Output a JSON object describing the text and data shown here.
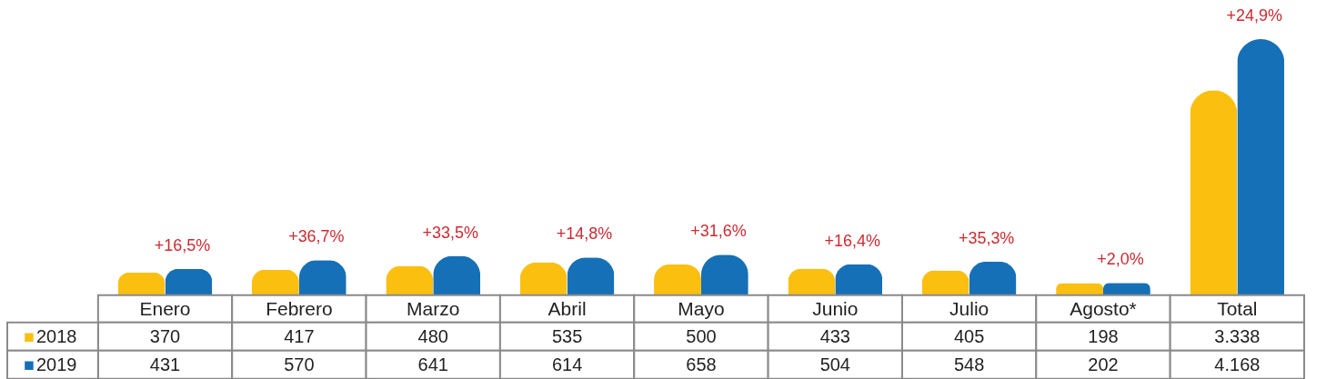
{
  "chart_data": {
    "type": "bar",
    "categories": [
      "Enero",
      "Febrero",
      "Marzo",
      "Abril",
      "Mayo",
      "Junio",
      "Julio",
      "Agosto*",
      "Total"
    ],
    "series": [
      {
        "name": "2018",
        "color": "#fbbf10",
        "values": [
          370,
          417,
          480,
          535,
          500,
          433,
          405,
          198,
          3338
        ],
        "value_labels": [
          "370",
          "417",
          "480",
          "535",
          "500",
          "433",
          "405",
          "198",
          "3.338"
        ]
      },
      {
        "name": "2019",
        "color": "#1570b7",
        "values": [
          431,
          570,
          641,
          614,
          658,
          504,
          548,
          202,
          4168
        ],
        "value_labels": [
          "431",
          "570",
          "641",
          "614",
          "658",
          "504",
          "548",
          "202",
          "4.168"
        ]
      }
    ],
    "annotations": [
      {
        "text": "+16,5%",
        "x": "Enero",
        "y": 431
      },
      {
        "text": "+36,7%",
        "x": "Febrero",
        "y": 570
      },
      {
        "text": "+33,5%",
        "x": "Marzo",
        "y": 641
      },
      {
        "text": "+14,8%",
        "x": "Abril",
        "y": 614
      },
      {
        "text": "+31,6%",
        "x": "Mayo",
        "y": 658
      },
      {
        "text": "+16,4%",
        "x": "Junio",
        "y": 504
      },
      {
        "text": "+35,3%",
        "x": "Julio",
        "y": 548
      },
      {
        "text": "+2,0%",
        "x": "Agosto*",
        "y": 202
      },
      {
        "text": "+24,9%",
        "x": "Total",
        "y": 4168
      }
    ],
    "ylim": [
      0,
      4800
    ],
    "tick_labels": "x",
    "legend": "bottom left"
  }
}
